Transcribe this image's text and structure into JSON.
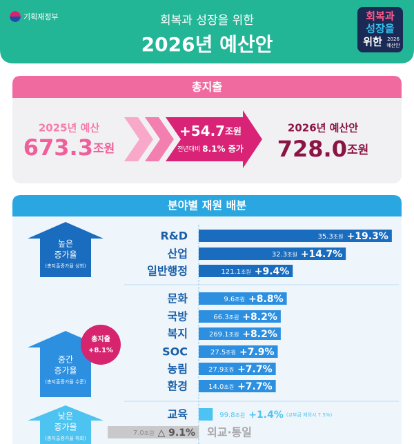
{
  "header": {
    "ministry": "기획재정부",
    "title_line1": "회복과 성장을 위한",
    "title_line2": "2026년 예산안",
    "badge": {
      "line1": "회복과",
      "line2": "성장을",
      "line3": "위한",
      "year": "2026",
      "label": "예산안"
    }
  },
  "total": {
    "heading": "총지출",
    "prev_label": "2025년 예산",
    "prev_amount": "673.3",
    "prev_unit": "조원",
    "change_amount": "+54.7",
    "change_unit": "조원",
    "change_note_prefix": "전년대비",
    "change_note": "8.1% 증가",
    "next_label": "2026년 예산안",
    "next_amount": "728.0",
    "next_unit": "조원"
  },
  "allocation": {
    "heading": "분야별 재원 배분",
    "high": {
      "label1": "높은",
      "label2": "증가율",
      "sub": "(총지출증가율 상회)"
    },
    "mid": {
      "label1": "중간",
      "label2": "증가율",
      "sub": "(총지출증가율 수준)"
    },
    "low": {
      "label1": "낮은",
      "label2": "증가율",
      "sub": "(총지출증가율 하회)"
    },
    "badge_line1": "총지출",
    "badge_line2": "+8.1%"
  },
  "chart_data": {
    "type": "bar",
    "orientation": "horizontal",
    "categories": [
      "R&D",
      "산업",
      "일반행정",
      "문화",
      "국방",
      "복지",
      "SOC",
      "농림",
      "환경",
      "교육",
      "외교·통일"
    ],
    "values": [
      19.3,
      14.7,
      9.4,
      8.8,
      8.2,
      8.2,
      7.9,
      7.7,
      7.7,
      1.4,
      -9.1
    ],
    "value_labels": [
      "+19.3%",
      "+14.7%",
      "+9.4%",
      "+8.8%",
      "+8.2%",
      "+8.2%",
      "+7.9%",
      "+7.7%",
      "+7.7%",
      "+1.4%",
      "△ 9.1%"
    ],
    "amounts": [
      35.3,
      32.3,
      121.1,
      9.6,
      66.3,
      269.1,
      27.5,
      27.9,
      14.0,
      99.8,
      7.0
    ],
    "amount_labels": [
      "35.3",
      "32.3",
      "121.1",
      "9.6",
      "66.3",
      "269.1",
      "27.5",
      "27.9",
      "14.0",
      "99.8",
      "7.0"
    ],
    "amount_unit": "조원",
    "colors": [
      "#1a6cbf",
      "#1a6cbf",
      "#1a6cbf",
      "#2d8fe0",
      "#2d8fe0",
      "#2d8fe0",
      "#2d8fe0",
      "#2d8fe0",
      "#2d8fe0",
      "#4cc3f0",
      "#c9c9cc"
    ],
    "note": "(교부금 제외시 7.5%)",
    "xlim": [
      -10,
      20
    ]
  }
}
